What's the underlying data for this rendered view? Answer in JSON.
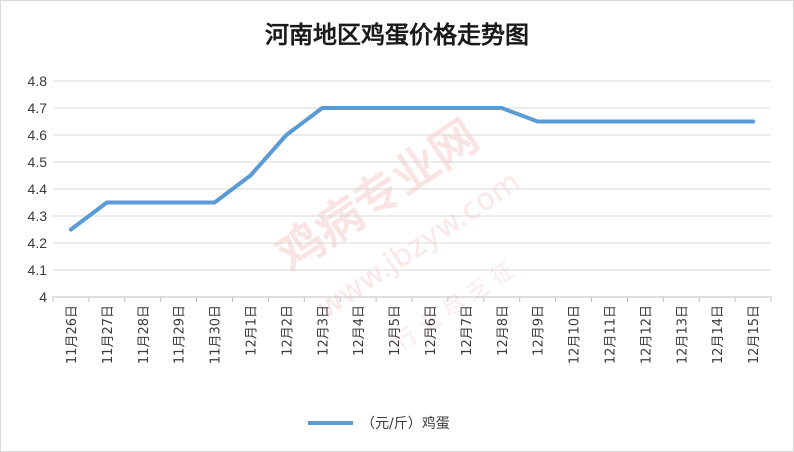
{
  "chart_data": {
    "type": "line",
    "title": "河南地区鸡蛋价格走势图",
    "categories": [
      "11月26日",
      "11月27日",
      "11月28日",
      "11月29日",
      "11月30日",
      "12月1日",
      "12月2日",
      "12月3日",
      "12月4日",
      "12月5日",
      "12月6日",
      "12月7日",
      "12月8日",
      "12月9日",
      "12月10日",
      "12月11日",
      "12月12日",
      "12月13日",
      "12月14日",
      "12月15日"
    ],
    "series": [
      {
        "name": "（元/斤）鸡蛋",
        "values": [
          4.25,
          4.35,
          4.35,
          4.35,
          4.35,
          4.45,
          4.6,
          4.7,
          4.7,
          4.7,
          4.7,
          4.7,
          4.7,
          4.65,
          4.65,
          4.65,
          4.65,
          4.65,
          4.65,
          4.65
        ],
        "color": "#5b9bd5"
      }
    ],
    "ylim": [
      4,
      4.8
    ],
    "yticks": [
      "4",
      "4.1",
      "4.2",
      "4.3",
      "4.4",
      "4.5",
      "4.6",
      "4.7",
      "4.8"
    ],
    "grid": true,
    "legend_position": "bottom",
    "gridline_color": "#d9d9d9",
    "axis_color": "#bfbfbf"
  },
  "watermark": {
    "lines": [
      "鸡病专业网",
      "www.jbzyw.com",
      "行 业 尽 乏 征"
    ],
    "color": "#e05a5a"
  }
}
